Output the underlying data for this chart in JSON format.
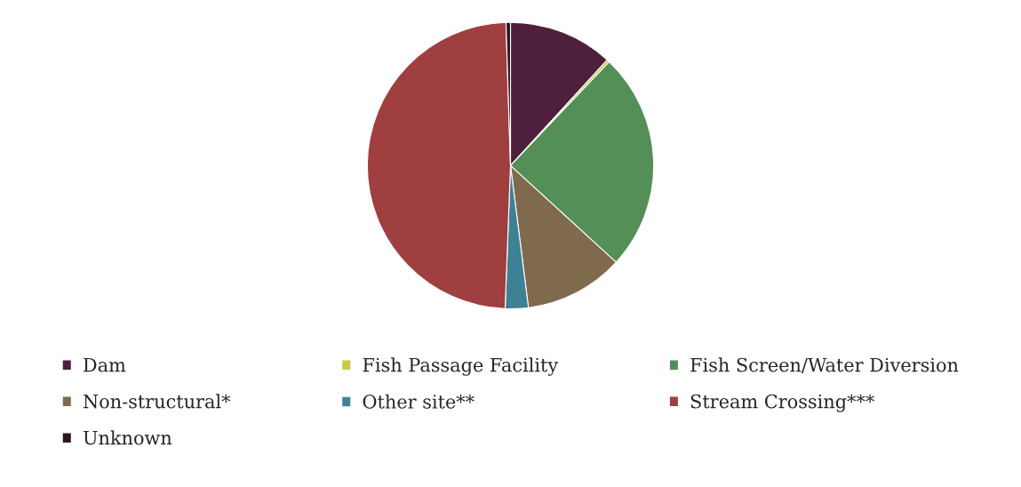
{
  "chart_data": {
    "type": "pie",
    "categories": [
      "Dam",
      "Fish Passage Facility",
      "Fish Screen/Water Diversion",
      "Non-structural*",
      "Other site**",
      "Stream Crossing***",
      "Unknown"
    ],
    "values": [
      11.8,
      0.3,
      24.7,
      11.2,
      2.6,
      48.9,
      0.5
    ],
    "colors": [
      "#4f1f3e",
      "#c9c94a",
      "#548f57",
      "#7f6a4e",
      "#3e8195",
      "#a03f3f",
      "#2a1520"
    ],
    "legend": "bottom"
  }
}
